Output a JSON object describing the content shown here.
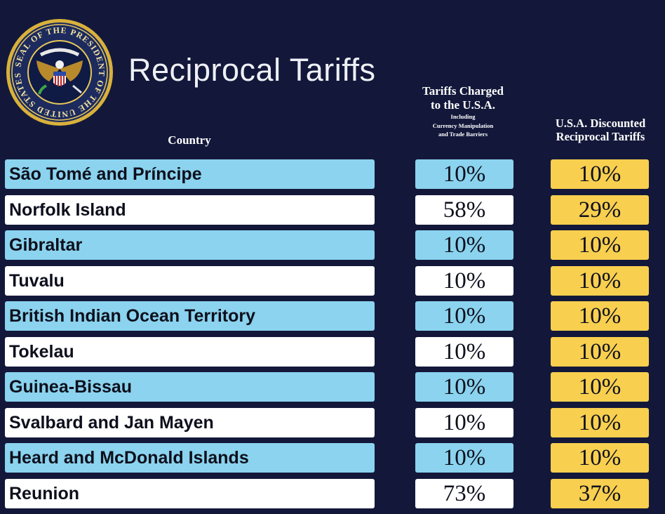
{
  "seal": {
    "alt_text": "SEAL OF THE PRESIDENT OF THE UNITED STATES"
  },
  "title": "Reciprocal Tariffs",
  "headers": {
    "country": "Country",
    "charged_main_line1": "Tariffs Charged",
    "charged_main_line2": "to the U.S.A.",
    "charged_sub_line1": "Including",
    "charged_sub_line2": "Currency Manipulation",
    "charged_sub_line3": "and Trade Barriers",
    "discounted_line1": "U.S.A. Discounted",
    "discounted_line2": "Reciprocal Tariffs"
  },
  "rows": [
    {
      "country": "São Tomé and Príncipe",
      "charged": "10%",
      "discounted": "10%"
    },
    {
      "country": "Norfolk Island",
      "charged": "58%",
      "discounted": "29%"
    },
    {
      "country": "Gibraltar",
      "charged": "10%",
      "discounted": "10%"
    },
    {
      "country": "Tuvalu",
      "charged": "10%",
      "discounted": "10%"
    },
    {
      "country": "British Indian Ocean Territory",
      "charged": "10%",
      "discounted": "10%"
    },
    {
      "country": "Tokelau",
      "charged": "10%",
      "discounted": "10%"
    },
    {
      "country": "Guinea-Bissau",
      "charged": "10%",
      "discounted": "10%"
    },
    {
      "country": "Svalbard and Jan Mayen",
      "charged": "10%",
      "discounted": "10%"
    },
    {
      "country": "Heard and McDonald Islands",
      "charged": "10%",
      "discounted": "10%"
    },
    {
      "country": "Reunion",
      "charged": "73%",
      "discounted": "37%"
    }
  ],
  "colors": {
    "background": "#13183a",
    "row_blue": "#8bd3ee",
    "row_white": "#ffffff",
    "discount_yellow": "#f8cf4f"
  }
}
